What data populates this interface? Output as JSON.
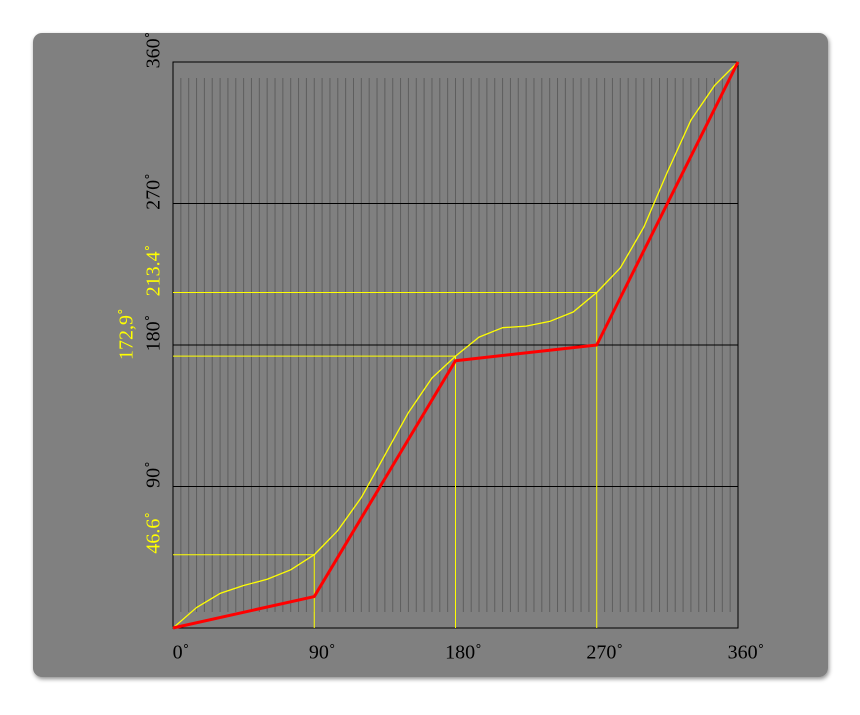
{
  "chart_data": {
    "type": "line",
    "xlim": [
      0,
      360
    ],
    "ylim": [
      0,
      360
    ],
    "xticks": [
      {
        "value": 0,
        "label": "0˚"
      },
      {
        "value": 90,
        "label": "90˚"
      },
      {
        "value": 180,
        "label": "180˚"
      },
      {
        "value": 270,
        "label": "270˚"
      },
      {
        "value": 360,
        "label": "360˚"
      }
    ],
    "yticks": [
      {
        "value": 90,
        "label": "90˚"
      },
      {
        "value": 180,
        "label": "180˚"
      },
      {
        "value": 270,
        "label": "270˚"
      },
      {
        "value": 360,
        "label": "360˚"
      }
    ],
    "minor_grid_step": 5,
    "series": [
      {
        "color": "#ff0000",
        "x": [
          0,
          90,
          180,
          270,
          360
        ],
        "values": [
          0,
          20,
          170,
          180,
          360
        ]
      },
      {
        "color": "#ffff00",
        "x": [
          0,
          15,
          30,
          45,
          60,
          75,
          90,
          105,
          120,
          135,
          150,
          165,
          180,
          195,
          210,
          225,
          240,
          255,
          270,
          285,
          300,
          315,
          330,
          345,
          360
        ],
        "values": [
          0,
          13,
          22,
          27,
          31,
          37,
          46.6,
          62,
          83,
          110,
          137,
          159,
          172.9,
          185,
          191,
          192,
          195,
          201,
          213.4,
          229,
          255,
          290,
          323,
          345,
          360
        ]
      }
    ],
    "annotations": [
      {
        "x": 90,
        "y": 46.6,
        "label": "46.6˚"
      },
      {
        "x": 180,
        "y": 172.9,
        "label": "172,9˚"
      },
      {
        "x": 270,
        "y": 213.4,
        "label": "213.4˚"
      }
    ]
  }
}
